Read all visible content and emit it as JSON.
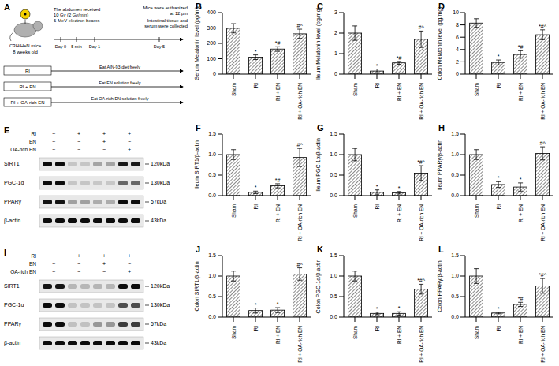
{
  "panel_a": {
    "letter": "A",
    "mouse": [
      "C3H/HeN mice",
      "8 weeks old"
    ],
    "irradiation": [
      "The abdomen received",
      "10 Gy (2 Gy/min)",
      "6-MeV electron beams"
    ],
    "timeline": [
      "Day 0",
      "5 min",
      "Day 1",
      "Day 5"
    ],
    "groups": [
      {
        "name": "RI",
        "diet": "Eat AIN-93 diet freely"
      },
      {
        "name": "RI + EN",
        "diet": "Eat EN solution freely"
      },
      {
        "name": "RI + OA-rich EN",
        "diet": "Eat OA-rich EN solution freely"
      }
    ],
    "endpoint": [
      "Mice were euthanized",
      "at 12 pm"
    ],
    "collection": [
      "Intestinal tissue and",
      "serum were collected"
    ]
  },
  "blots": [
    {
      "letter": "E",
      "conditions": [
        {
          "name": "RI",
          "signs": [
            "−",
            "+",
            "+",
            "+"
          ]
        },
        {
          "name": "EN",
          "signs": [
            "−",
            "−",
            "+",
            "−"
          ]
        },
        {
          "name": "OA-rich EN",
          "signs": [
            "−",
            "−",
            "−",
            "+"
          ]
        }
      ],
      "rows": [
        {
          "protein": "SIRT1",
          "kda": "120kDa"
        },
        {
          "protein": "PGC-1α",
          "kda": "130kDa"
        },
        {
          "protein": "PPARγ",
          "kda": "57kDa"
        },
        {
          "protein": "β-actin",
          "kda": "43kDa"
        }
      ]
    },
    {
      "letter": "I",
      "conditions": [
        {
          "name": "RI",
          "signs": [
            "−",
            "+",
            "+",
            "+"
          ]
        },
        {
          "name": "EN",
          "signs": [
            "−",
            "−",
            "+",
            "−"
          ]
        },
        {
          "name": "OA-rich EN",
          "signs": [
            "−",
            "−",
            "−",
            "+"
          ]
        }
      ],
      "rows": [
        {
          "protein": "SIRT1",
          "kda": "120kDa"
        },
        {
          "protein": "PGC-1α",
          "kda": "130kDa"
        },
        {
          "protein": "PPARγ",
          "kda": "57kDa"
        },
        {
          "protein": "β-actin",
          "kda": "43kDa"
        }
      ]
    }
  ],
  "chart_data": [
    {
      "panel": "B",
      "type": "bar",
      "ylabel": "Serum Melatonin level (pg/ml)",
      "categories": [
        "Sham",
        "RI",
        "RI + EN",
        "RI + OA-rich EN"
      ],
      "values": [
        298,
        110,
        163,
        262
      ],
      "errors": [
        30,
        15,
        15,
        30
      ],
      "annotations": [
        null,
        "*",
        "*#",
        "#^"
      ],
      "ylim": [
        0,
        400
      ],
      "yticks": [
        0,
        100,
        200,
        300,
        400
      ],
      "color": "#000000",
      "grid": false
    },
    {
      "panel": "C",
      "type": "bar",
      "ylabel": "Ileum Melatonin level (pg/mg)",
      "categories": [
        "Sham",
        "RI",
        "RI + EN",
        "RI + OA-rich EN"
      ],
      "values": [
        2.0,
        0.15,
        0.55,
        1.7
      ],
      "errors": [
        0.35,
        0.1,
        0.07,
        0.4
      ],
      "annotations": [
        null,
        "*",
        "*#",
        "#^"
      ],
      "ylim": [
        0,
        3
      ],
      "yticks": [
        0,
        1,
        2,
        3
      ],
      "color": "#000000",
      "grid": false
    },
    {
      "panel": "D",
      "type": "bar",
      "ylabel": "Colon Melatonin level (pg/mg)",
      "categories": [
        "Sham",
        "RI",
        "RI + EN",
        "RI + OA-rich EN"
      ],
      "values": [
        8.3,
        1.9,
        3.2,
        6.4
      ],
      "errors": [
        0.7,
        0.4,
        0.6,
        0.8
      ],
      "annotations": [
        null,
        "*",
        "*#",
        "*#^"
      ],
      "ylim": [
        0,
        10
      ],
      "yticks": [
        0,
        2,
        4,
        6,
        8,
        10
      ],
      "color": "#000000",
      "grid": false
    },
    {
      "panel": "F",
      "type": "bar",
      "ylabel": "Ileum SIRT1/β-actin",
      "categories": [
        "Sham",
        "RI",
        "RI + EN",
        "RI + OA-rich EN"
      ],
      "values": [
        1.0,
        0.08,
        0.24,
        0.93
      ],
      "errors": [
        0.12,
        0.03,
        0.05,
        0.22
      ],
      "annotations": [
        null,
        "*",
        "*#",
        "#^"
      ],
      "ylim": [
        0,
        1.5
      ],
      "yticks": [
        {
          "value": 0,
          "label": "0.0"
        },
        {
          "value": 0.5,
          "label": "0.5"
        },
        {
          "value": 1,
          "label": "1.0"
        },
        {
          "value": 1.5,
          "label": "1.5"
        }
      ],
      "color": "#000000",
      "grid": false
    },
    {
      "panel": "G",
      "type": "bar",
      "ylabel": "Ileum PGC-1α/β-actin",
      "categories": [
        "Sham",
        "RI",
        "RI + EN",
        "RI + OA-rich EN"
      ],
      "values": [
        1.0,
        0.08,
        0.07,
        0.55
      ],
      "errors": [
        0.15,
        0.06,
        0.03,
        0.18
      ],
      "annotations": [
        null,
        "*",
        "*",
        "*#^"
      ],
      "ylim": [
        0,
        1.5
      ],
      "yticks": [
        {
          "value": 0,
          "label": "0.0"
        },
        {
          "value": 0.5,
          "label": "0.5"
        },
        {
          "value": 1,
          "label": "1.0"
        },
        {
          "value": 1.5,
          "label": "1.5"
        }
      ],
      "color": "#000000",
      "grid": false
    },
    {
      "panel": "H",
      "type": "bar",
      "ylabel": "Ileum PPARγ/β-actin",
      "categories": [
        "Sham",
        "RI",
        "RI + EN",
        "RI + OA-rich EN"
      ],
      "values": [
        1.0,
        0.27,
        0.21,
        1.03
      ],
      "errors": [
        0.12,
        0.07,
        0.1,
        0.16
      ],
      "annotations": [
        null,
        "*",
        "*",
        "#^"
      ],
      "ylim": [
        0,
        1.5
      ],
      "yticks": [
        {
          "value": 0,
          "label": "0.0"
        },
        {
          "value": 0.5,
          "label": "0.5"
        },
        {
          "value": 1,
          "label": "1.0"
        },
        {
          "value": 1.5,
          "label": "1.5"
        }
      ],
      "color": "#000000",
      "grid": false
    },
    {
      "panel": "J",
      "type": "bar",
      "ylabel": "Colon SIRT1/β-actin",
      "categories": [
        "Sham",
        "RI",
        "RI + EN",
        "RI + OA-rich EN"
      ],
      "values": [
        1.0,
        0.16,
        0.17,
        1.05
      ],
      "errors": [
        0.12,
        0.06,
        0.06,
        0.15
      ],
      "annotations": [
        null,
        "*",
        "*",
        "#^"
      ],
      "ylim": [
        0,
        1.5
      ],
      "yticks": [
        {
          "value": 0,
          "label": "0.0"
        },
        {
          "value": 0.5,
          "label": "0.5"
        },
        {
          "value": 1,
          "label": "1.0"
        },
        {
          "value": 1.5,
          "label": "1.5"
        }
      ],
      "color": "#000000",
      "grid": false
    },
    {
      "panel": "K",
      "type": "bar",
      "ylabel": "Colon PGC-1α/β-actin",
      "categories": [
        "Sham",
        "RI",
        "RI + EN",
        "RI + OA-rich EN"
      ],
      "values": [
        1.0,
        0.09,
        0.09,
        0.68
      ],
      "errors": [
        0.12,
        0.03,
        0.04,
        0.12
      ],
      "annotations": [
        null,
        "*",
        "*",
        "*#^"
      ],
      "ylim": [
        0,
        1.5
      ],
      "yticks": [
        {
          "value": 0,
          "label": "0.0"
        },
        {
          "value": 0.5,
          "label": "0.5"
        },
        {
          "value": 1,
          "label": "1.0"
        },
        {
          "value": 1.5,
          "label": "1.5"
        }
      ],
      "color": "#000000",
      "grid": false
    },
    {
      "panel": "L",
      "type": "bar",
      "ylabel": "Colon PPARγ/β-actin",
      "categories": [
        "Sham",
        "RI",
        "RI + EN",
        "RI + OA-rich EN"
      ],
      "values": [
        1.0,
        0.1,
        0.31,
        0.76
      ],
      "errors": [
        0.18,
        0.02,
        0.05,
        0.18
      ],
      "annotations": [
        null,
        "*",
        "*#",
        "*#^"
      ],
      "ylim": [
        0,
        1.5
      ],
      "yticks": [
        {
          "value": 0,
          "label": "0.0"
        },
        {
          "value": 0.5,
          "label": "0.5"
        },
        {
          "value": 1,
          "label": "1.0"
        },
        {
          "value": 1.5,
          "label": "1.5"
        }
      ],
      "color": "#000000",
      "grid": false
    }
  ]
}
